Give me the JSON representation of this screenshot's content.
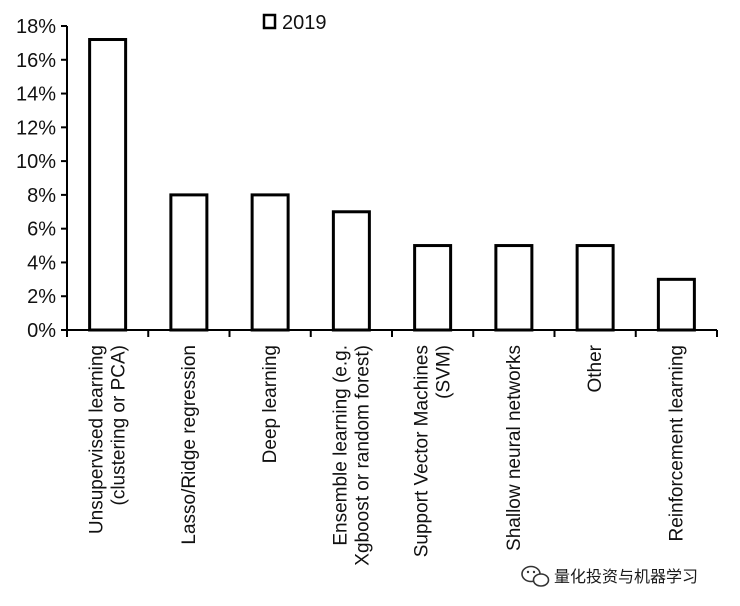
{
  "chart_data": {
    "type": "bar",
    "title": "",
    "xlabel": "",
    "ylabel": "",
    "ylim": [
      0,
      18
    ],
    "y_ticks": [
      "0%",
      "2%",
      "4%",
      "6%",
      "8%",
      "10%",
      "12%",
      "14%",
      "16%",
      "18%"
    ],
    "grid": false,
    "legend_position": "top-center",
    "categories": [
      [
        "Unsupervised learning",
        "(clustering or PCA)"
      ],
      [
        "Lasso/Ridge regression"
      ],
      [
        "Deep learning"
      ],
      [
        "Ensemble learning (e.g.",
        "Xgboost or random forest)"
      ],
      [
        "Support Vector Machines",
        "(SVM)"
      ],
      [
        "Shallow neural networks"
      ],
      [
        "Other"
      ],
      [
        "Reinforcement learning"
      ]
    ],
    "series": [
      {
        "name": "2019",
        "values": [
          17.2,
          8.0,
          8.0,
          7.0,
          5.0,
          5.0,
          5.0,
          3.0
        ],
        "fill": "#ffffff",
        "stroke": "#000000"
      }
    ]
  },
  "watermark": {
    "text": "量化投资与机器学习",
    "icon": "wechat-icon"
  }
}
